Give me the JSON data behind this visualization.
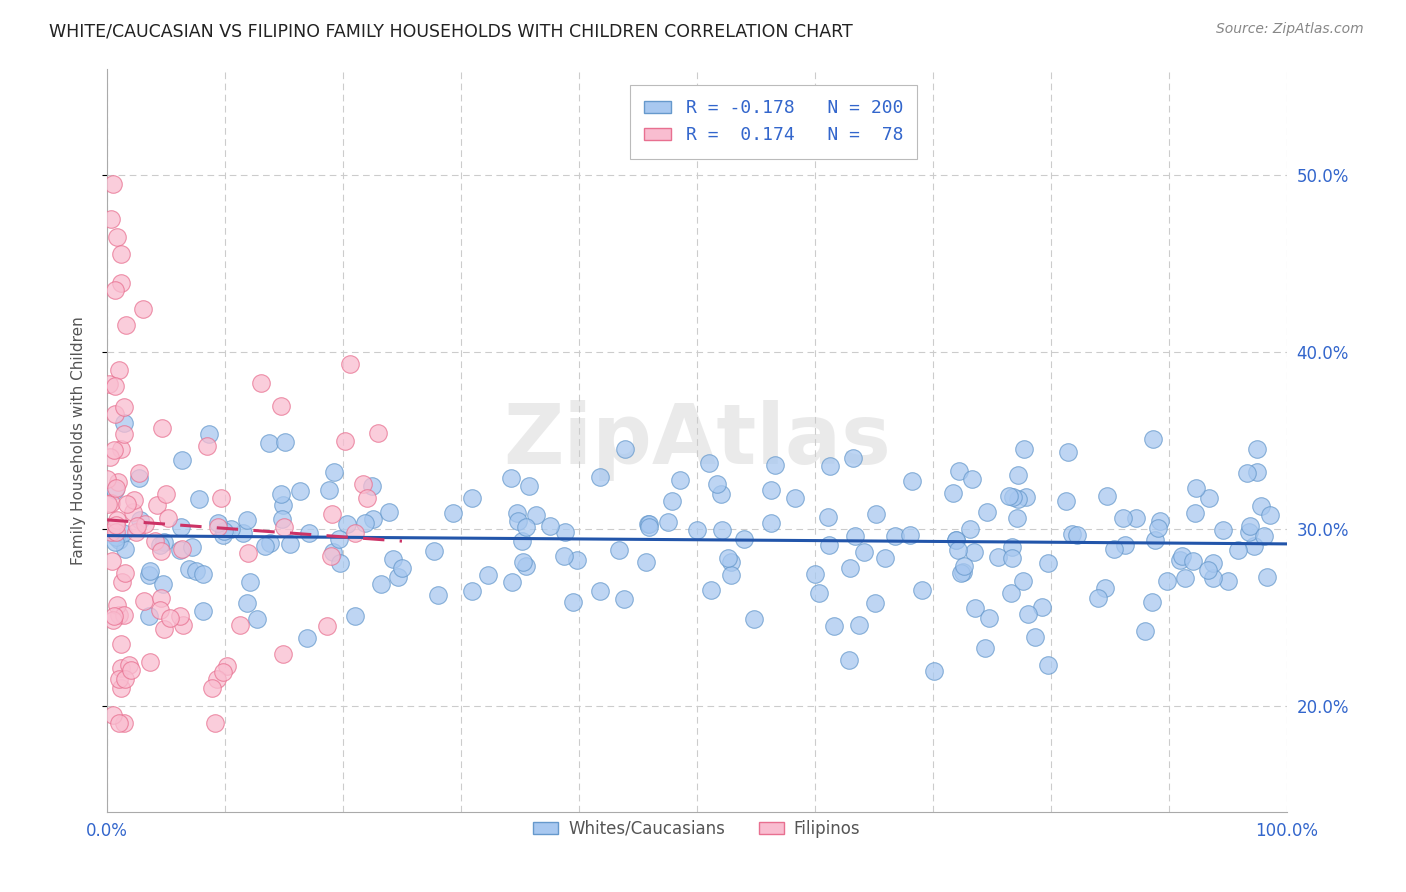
{
  "title": "WHITE/CAUCASIAN VS FILIPINO FAMILY HOUSEHOLDS WITH CHILDREN CORRELATION CHART",
  "source": "Source: ZipAtlas.com",
  "ylabel": "Family Households with Children",
  "yticks": [
    0.2,
    0.3,
    0.4,
    0.5
  ],
  "ytick_labels": [
    "20.0%",
    "30.0%",
    "40.0%",
    "50.0%"
  ],
  "xticks": [
    0.0,
    0.1,
    0.2,
    0.3,
    0.4,
    0.5,
    0.6,
    0.7,
    0.8,
    0.9,
    1.0
  ],
  "xlim": [
    0.0,
    1.0
  ],
  "ylim": [
    0.14,
    0.56
  ],
  "blue_color": "#A8C8F0",
  "blue_edge": "#6699CC",
  "pink_color": "#F9BDD0",
  "pink_edge": "#E87090",
  "line_blue": "#2255AA",
  "line_pink": "#CC3366",
  "legend_blue_r": "-0.178",
  "legend_blue_n": "200",
  "legend_pink_r": "0.174",
  "legend_pink_n": "78",
  "legend_label_blue": "Whites/Caucasians",
  "legend_label_pink": "Filipinos",
  "watermark": "ZipAtlas",
  "background_color": "#FFFFFF",
  "grid_color": "#CCCCCC"
}
